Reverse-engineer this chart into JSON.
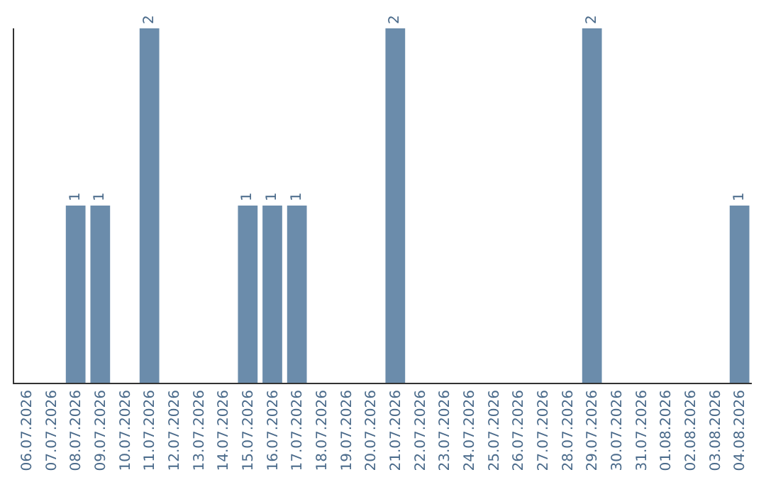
{
  "chart_data": {
    "type": "bar",
    "categories": [
      "06.07.2026",
      "07.07.2026",
      "08.07.2026",
      "09.07.2026",
      "10.07.2026",
      "11.07.2026",
      "12.07.2026",
      "13.07.2026",
      "14.07.2026",
      "15.07.2026",
      "16.07.2026",
      "17.07.2026",
      "18.07.2026",
      "19.07.2026",
      "20.07.2026",
      "21.07.2026",
      "22.07.2026",
      "23.07.2026",
      "24.07.2026",
      "25.07.2026",
      "26.07.2026",
      "27.07.2026",
      "28.07.2026",
      "29.07.2026",
      "30.07.2026",
      "31.07.2026",
      "01.08.2026",
      "02.08.2026",
      "03.08.2026",
      "04.08.2026"
    ],
    "values": [
      0,
      0,
      1,
      1,
      0,
      2,
      0,
      0,
      0,
      1,
      1,
      1,
      0,
      0,
      0,
      2,
      0,
      0,
      0,
      0,
      0,
      0,
      0,
      2,
      0,
      0,
      0,
      0,
      0,
      1
    ],
    "value_labels": [
      null,
      null,
      "1",
      "1",
      null,
      "2",
      null,
      null,
      null,
      "1",
      "1",
      "1",
      null,
      null,
      null,
      "2",
      null,
      null,
      null,
      null,
      null,
      null,
      null,
      "2",
      null,
      null,
      null,
      null,
      null,
      "1"
    ],
    "color": "#6b8cab",
    "ylim": [
      0,
      2
    ],
    "tick_labels": "x",
    "grid": false,
    "legend": false
  }
}
